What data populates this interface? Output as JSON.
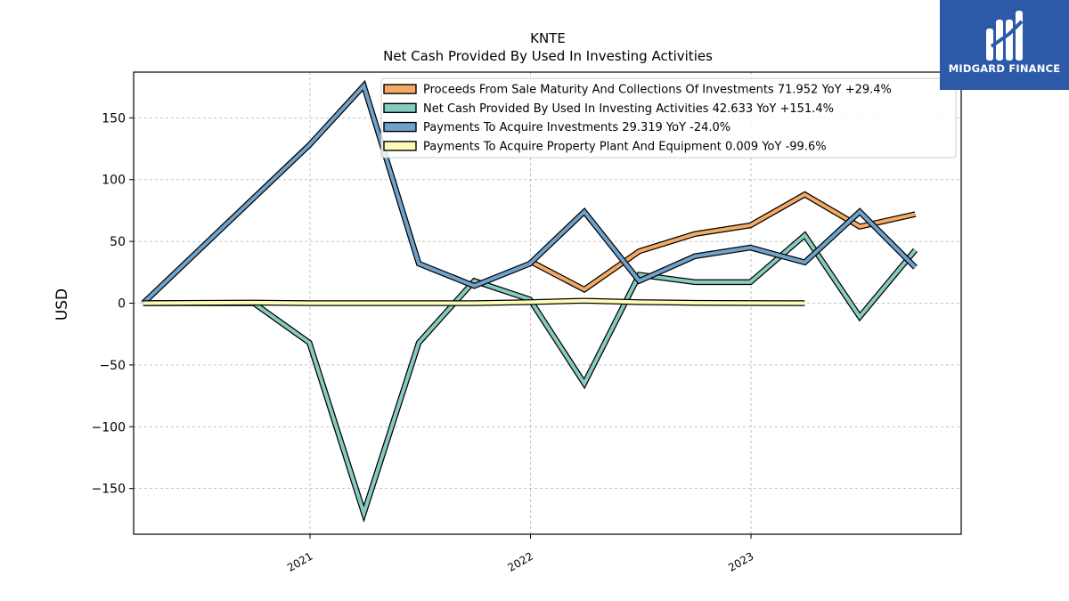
{
  "chart_data": {
    "type": "line",
    "title": "KNTE",
    "subtitle": "Net Cash Provided By Used In Investing Activities",
    "ylabel": "USD",
    "xlabel": "",
    "xlim": [
      "2020-03-15",
      "2023-12-15"
    ],
    "ylim": [
      -187,
      187
    ],
    "yticks": [
      -150,
      -100,
      -50,
      0,
      50,
      100,
      150
    ],
    "xticks": [
      "2021",
      "2022",
      "2023"
    ],
    "grid": true,
    "legend_position": "top-right",
    "series": [
      {
        "name": "Proceeds From Sale Maturity And Collections Of Investments",
        "legend_label": "Proceeds From Sale Maturity And Collections Of Investments  71.952 YoY +29.4%",
        "color": "#f5a964",
        "x": [
          "2021-12-31",
          "2022-03-31",
          "2022-06-30",
          "2022-09-30",
          "2022-12-31",
          "2023-03-31",
          "2023-06-30",
          "2023-09-30"
        ],
        "values": [
          34,
          11,
          42,
          56,
          63,
          88,
          62,
          72
        ]
      },
      {
        "name": "Net Cash Provided By Used In Investing Activities",
        "legend_label": "Net Cash Provided By Used In Investing Activities  42.633 YoY +151.4%",
        "color": "#86cbbf",
        "x": [
          "2020-03-31",
          "2020-06-30",
          "2020-09-30",
          "2020-12-31",
          "2021-03-31",
          "2021-06-30",
          "2021-09-30",
          "2021-12-31",
          "2022-03-31",
          "2022-06-30",
          "2022-09-30",
          "2022-12-31",
          "2023-03-31",
          "2023-06-30",
          "2023-09-30"
        ],
        "values": [
          0,
          0,
          0,
          -32,
          -170,
          -32,
          18,
          3,
          -65,
          23,
          17,
          17,
          55,
          -11,
          43
        ]
      },
      {
        "name": "Payments To Acquire Investments",
        "legend_label": "Payments To Acquire Investments  29.319 YoY -24.0%",
        "color": "#6fa2cc",
        "x": [
          "2020-03-31",
          "2020-12-31",
          "2021-03-31",
          "2021-06-30",
          "2021-09-30",
          "2021-12-31",
          "2022-03-31",
          "2022-06-30",
          "2022-09-30",
          "2022-12-31",
          "2023-03-31",
          "2023-06-30",
          "2023-09-30"
        ],
        "values": [
          0,
          128,
          176,
          32,
          14,
          32,
          74,
          18,
          38,
          45,
          33,
          74,
          29
        ]
      },
      {
        "name": "Payments To Acquire Property Plant And Equipment",
        "legend_label": "Payments To Acquire Property Plant And Equipment  0.009 YoY -99.6%",
        "color": "#fdfcb7",
        "x": [
          "2020-03-31",
          "2020-06-30",
          "2020-09-30",
          "2020-12-31",
          "2021-03-31",
          "2021-06-30",
          "2021-09-30",
          "2021-12-31",
          "2022-03-31",
          "2022-06-30",
          "2022-09-30",
          "2022-12-31",
          "2023-03-31"
        ],
        "values": [
          0,
          0.3,
          0.4,
          0,
          0,
          0,
          0,
          0.8,
          2,
          0.8,
          0.3,
          0.1,
          0
        ]
      }
    ]
  },
  "logo": {
    "text": "MIDGARD FINANCE",
    "background": "#2c5aa8"
  }
}
